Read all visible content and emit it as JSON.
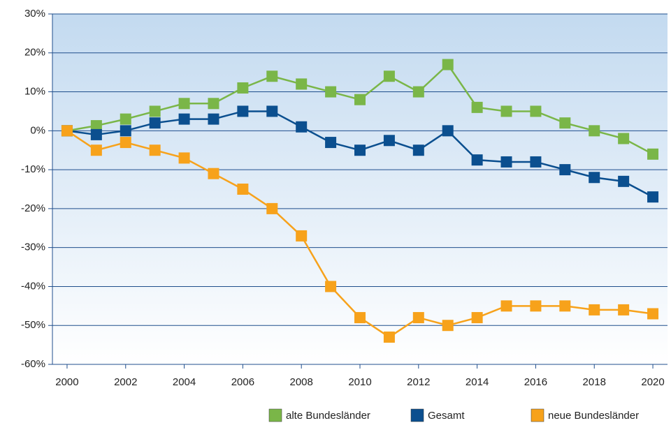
{
  "chart_data": {
    "type": "line",
    "x": [
      2000,
      2001,
      2002,
      2003,
      2004,
      2005,
      2006,
      2007,
      2008,
      2009,
      2010,
      2011,
      2012,
      2013,
      2014,
      2015,
      2016,
      2017,
      2018,
      2019,
      2020
    ],
    "series": [
      {
        "name": "alte Bundesländer",
        "color": "#7ab648",
        "values": [
          0,
          1.3,
          3,
          5,
          7,
          7,
          11,
          14,
          12,
          10,
          8,
          14,
          10,
          17,
          6,
          5,
          5,
          2,
          0,
          -2,
          -6
        ]
      },
      {
        "name": "Gesamt",
        "color": "#0b4f8f",
        "values": [
          0,
          -1,
          0,
          2,
          3,
          3,
          5,
          5,
          1,
          -3,
          -5,
          -2.5,
          -5,
          0,
          -7.5,
          -8,
          -8,
          -10,
          -12,
          -13,
          -17
        ]
      },
      {
        "name": "neue Bundesländer",
        "color": "#f7a21b",
        "values": [
          0,
          -5,
          -3,
          -5,
          -7,
          -11,
          -15,
          -20,
          -27,
          -40,
          -48,
          -53,
          -48,
          -50,
          -48,
          -45,
          -45,
          -45,
          -46,
          -46,
          -47
        ]
      }
    ],
    "xlim": [
      1999.5,
      2020.5
    ],
    "xticks": [
      2000,
      2002,
      2004,
      2006,
      2008,
      2010,
      2012,
      2014,
      2016,
      2018,
      2020
    ],
    "ylim": [
      -60,
      30
    ],
    "yticks": [
      {
        "value": -60,
        "label": "-60%"
      },
      {
        "value": -50,
        "label": "-50%"
      },
      {
        "value": -40,
        "label": "-40%"
      },
      {
        "value": -30,
        "label": "-30%"
      },
      {
        "value": -20,
        "label": "-20%"
      },
      {
        "value": -10,
        "label": "-10%"
      },
      {
        "value": 0,
        "label": "0%"
      },
      {
        "value": 10,
        "label": "10%"
      },
      {
        "value": 20,
        "label": "20%"
      },
      {
        "value": 30,
        "label": "30%"
      }
    ],
    "grid": true,
    "legend": "bottom-right"
  }
}
